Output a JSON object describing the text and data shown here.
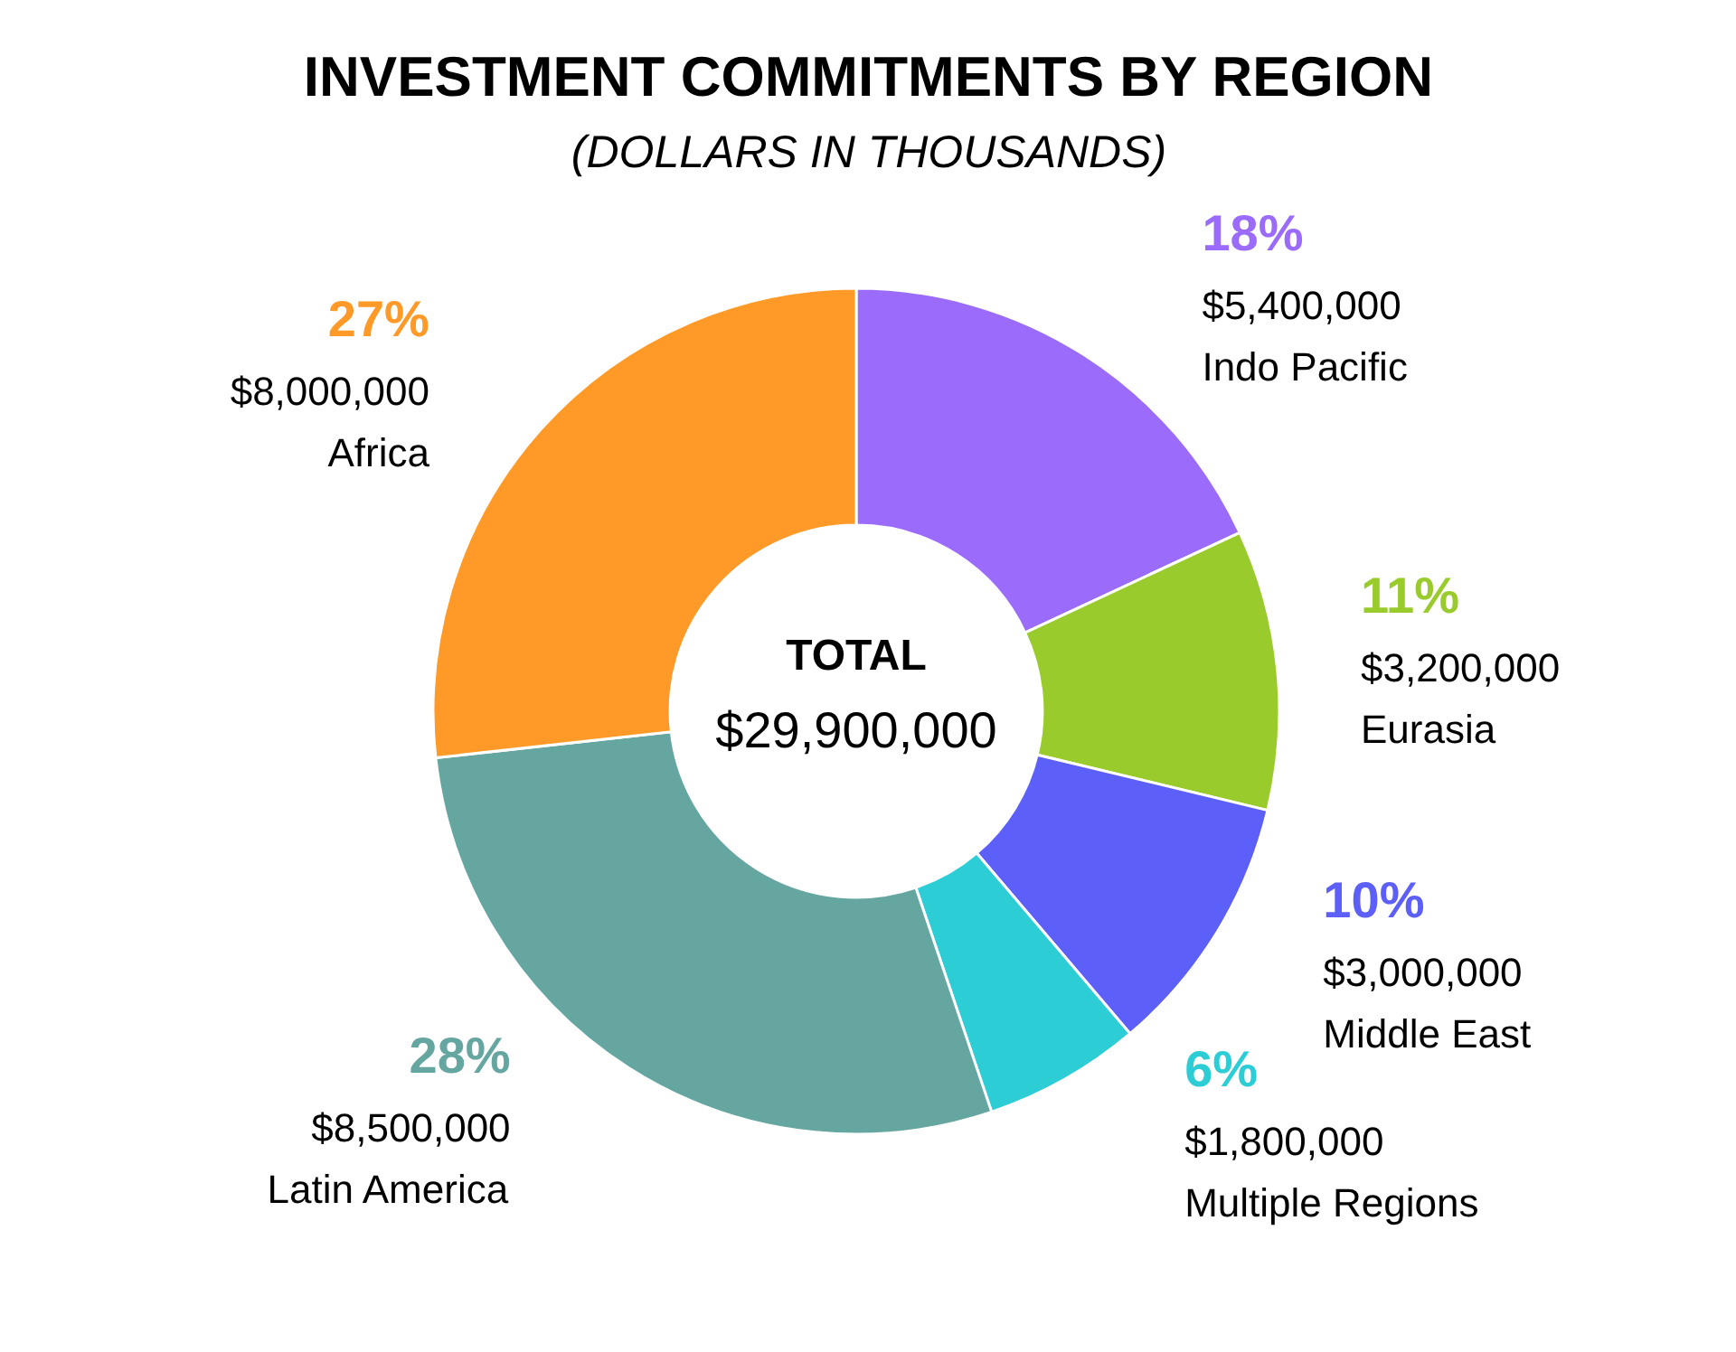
{
  "chart_data": {
    "type": "donut",
    "title": "INVESTMENT COMMITMENTS BY REGION",
    "subtitle": "(DOLLARS IN THOUSANDS)",
    "categories": [
      "Indo Pacific",
      "Eurasia",
      "Middle East",
      "Multiple Regions",
      "Latin America",
      "Africa"
    ],
    "values": [
      5400000,
      3200000,
      3000000,
      1800000,
      8500000,
      8000000
    ],
    "colors": [
      "#9b6bfb",
      "#9acb2c",
      "#5c5ff8",
      "#2dcdd5",
      "#66a6a0",
      "#ff9a28"
    ],
    "value_labels": [
      "18%\n$5,400,000",
      "11%\n$3,200,000",
      "10%\n$3,000,000",
      "6%\n$1,800,000",
      "28%\n$8,500,000",
      "27%\n$8,000,000"
    ],
    "annotations": [
      "TOTAL",
      "$29,900,000"
    ]
  }
}
